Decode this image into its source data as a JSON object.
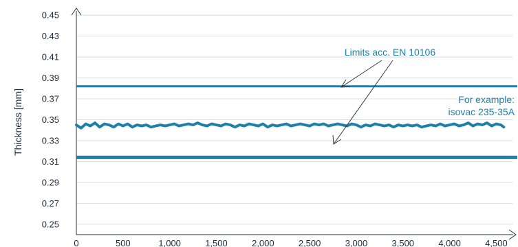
{
  "chart_data": {
    "type": "line",
    "title": "",
    "xlabel": "",
    "ylabel": "Thickness [mm]",
    "xlim": [
      0,
      4600
    ],
    "ylim": [
      0.24,
      0.46
    ],
    "x_ticks": [
      0,
      500,
      1000,
      1500,
      2000,
      2500,
      3000,
      3500,
      4000,
      4500
    ],
    "x_tick_labels": [
      "0",
      "500",
      "1,000",
      "1,500",
      "2,000",
      "2,500",
      "3,000",
      "3,500",
      "4,000",
      "4,500"
    ],
    "y_ticks": [
      0.25,
      0.27,
      0.29,
      0.31,
      0.33,
      0.35,
      0.37,
      0.39,
      0.41,
      0.43,
      0.45
    ],
    "y_tick_labels": [
      "0.25",
      "0.27",
      "0.29",
      "0.31",
      "0.33",
      "0.35",
      "0.37",
      "0.39",
      "0.41",
      "0.43",
      "0.45"
    ],
    "grid": "horizontal",
    "limits": {
      "upper": 0.382,
      "lower": 0.314
    },
    "series": [
      {
        "x": [
          0,
          50,
          100,
          150,
          200,
          250,
          300,
          350,
          400,
          450,
          500,
          550,
          600,
          650,
          700,
          750,
          800,
          850,
          900,
          950,
          1000,
          1050,
          1100,
          1150,
          1200,
          1250,
          1300,
          1350,
          1400,
          1450,
          1500,
          1550,
          1600,
          1650,
          1700,
          1750,
          1800,
          1850,
          1900,
          1950,
          2000,
          2050,
          2100,
          2150,
          2200,
          2250,
          2300,
          2350,
          2400,
          2450,
          2500,
          2550,
          2600,
          2650,
          2700,
          2750,
          2800,
          2850,
          2900,
          2950,
          3000,
          3050,
          3100,
          3150,
          3200,
          3250,
          3300,
          3350,
          3400,
          3450,
          3500,
          3550,
          3600,
          3650,
          3700,
          3750,
          3800,
          3850,
          3900,
          3950,
          4000,
          4050,
          4100,
          4150,
          4200,
          4250,
          4300,
          4350,
          4400,
          4450,
          4500,
          4550,
          4580
        ],
        "y": [
          0.345,
          0.342,
          0.346,
          0.344,
          0.347,
          0.343,
          0.346,
          0.345,
          0.343,
          0.346,
          0.344,
          0.346,
          0.343,
          0.345,
          0.344,
          0.345,
          0.343,
          0.344,
          0.345,
          0.344,
          0.345,
          0.346,
          0.344,
          0.345,
          0.346,
          0.345,
          0.347,
          0.345,
          0.344,
          0.346,
          0.345,
          0.344,
          0.346,
          0.345,
          0.343,
          0.345,
          0.344,
          0.346,
          0.345,
          0.344,
          0.346,
          0.343,
          0.345,
          0.344,
          0.345,
          0.346,
          0.344,
          0.345,
          0.346,
          0.345,
          0.344,
          0.346,
          0.345,
          0.346,
          0.344,
          0.345,
          0.346,
          0.345,
          0.344,
          0.346,
          0.345,
          0.343,
          0.345,
          0.344,
          0.346,
          0.345,
          0.344,
          0.345,
          0.343,
          0.345,
          0.344,
          0.345,
          0.344,
          0.345,
          0.343,
          0.344,
          0.345,
          0.344,
          0.346,
          0.344,
          0.345,
          0.346,
          0.344,
          0.345,
          0.347,
          0.344,
          0.346,
          0.345,
          0.347,
          0.344,
          0.346,
          0.345,
          0.343
        ]
      }
    ],
    "annotations": [
      {
        "text": "Limits acc. EN 10106",
        "position": "upper-center"
      },
      {
        "text": "For example:",
        "position": "right"
      },
      {
        "text": "isovac 235-35A",
        "position": "right"
      }
    ],
    "colors": {
      "series": "#1e7fa8",
      "limits": "#1e7fa8",
      "annotation": "#1e7fa8",
      "grid": "#d9dde2",
      "axis": "#2b2f36",
      "text": "#1f2a3a",
      "arrow": "#333840"
    }
  }
}
